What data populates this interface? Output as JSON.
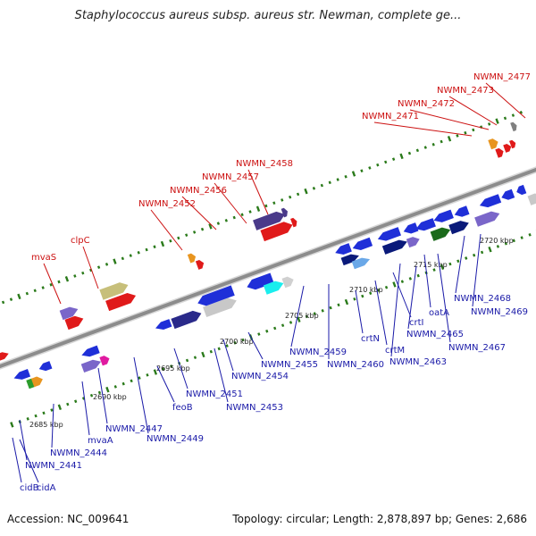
{
  "title": "Staphylococcus aureus subsp. aureus str. Newman, complete ge...",
  "footer": {
    "accession": "Accession: NC_009641",
    "stats": "Topology: circular; Length: 2,878,897 bp; Genes: 2,686"
  },
  "colors": {
    "backbone": "#8c8c8c",
    "dots": "#2a7a1a",
    "forward_label": "#cc1111",
    "reverse_label": "#1a1aa8",
    "tick_label": "#222222"
  },
  "ticks": [
    "2685 kbp",
    "2690 kbp",
    "2695 kbp",
    "2700 kbp",
    "2705 kbp",
    "2710 kbp",
    "2715 kbp",
    "2720 kbp"
  ],
  "forward_labels": [
    "mvaS",
    "clpC",
    "NWMN_2452",
    "NWMN_2456",
    "NWMN_2457",
    "NWMN_2458",
    "NWMN_2471",
    "NWMN_2472",
    "NWMN_2473",
    "NWMN_2477"
  ],
  "reverse_labels": [
    "cidB",
    "cidA",
    "NWMN_2441",
    "NWMN_2444",
    "mvaA",
    "NWMN_2447",
    "NWMN_2449",
    "feoB",
    "NWMN_2451",
    "NWMN_2453",
    "NWMN_2454",
    "NWMN_2455",
    "NWMN_2459",
    "NWMN_2460",
    "crtN",
    "crtM",
    "crtI",
    "NWMN_2463",
    "NWMN_2465",
    "oatA",
    "NWMN_2467",
    "NWMN_2468",
    "NWMN_2469"
  ]
}
